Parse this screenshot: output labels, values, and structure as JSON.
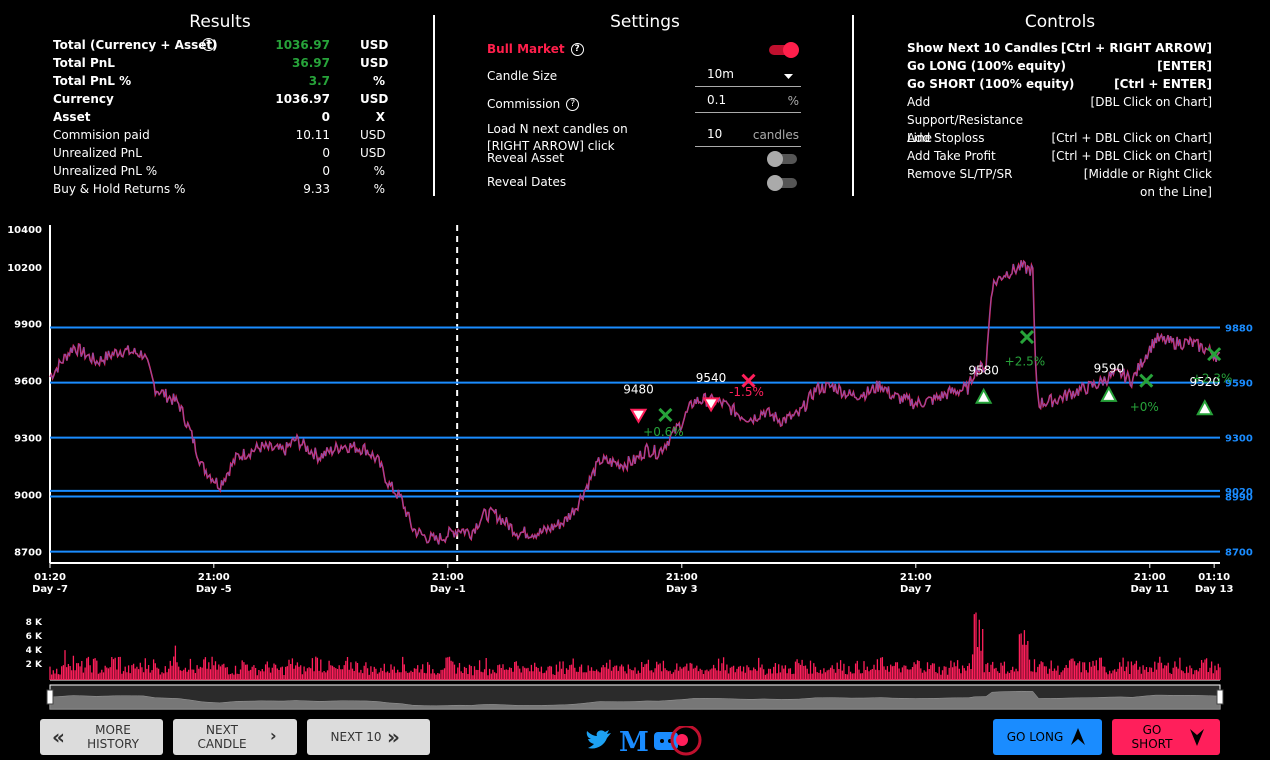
{
  "results": {
    "title": "Results",
    "rows": [
      {
        "label": "Total (Currency + Asset)",
        "value": "1036.97",
        "unit": "USD"
      },
      {
        "label": "Total PnL",
        "value": "36.97",
        "unit": "USD"
      },
      {
        "label": "Total PnL %",
        "value": "3.7",
        "unit": "%"
      },
      {
        "label": "Currency",
        "value": "1036.97",
        "unit": "USD"
      },
      {
        "label": "Asset",
        "value": "0",
        "unit": "X"
      },
      {
        "label": "Commision paid",
        "value": "10.11",
        "unit": "USD"
      },
      {
        "label": "Unrealized PnL",
        "value": "0",
        "unit": "USD"
      },
      {
        "label": "Unrealized PnL %",
        "value": "0",
        "unit": "%"
      },
      {
        "label": "Buy & Hold Returns %",
        "value": "9.33",
        "unit": "%"
      }
    ]
  },
  "settings": {
    "title": "Settings",
    "bull_market_label": "Bull Market",
    "bull_market_on": true,
    "candle_size_label": "Candle Size",
    "candle_size_value": "10m",
    "commission_label": "Commission",
    "commission_value": "0.1",
    "commission_suffix": "%",
    "load_n_label": "Load N next candles on [RIGHT ARROW] click",
    "load_n_value": "10",
    "load_n_suffix": "candles",
    "reveal_asset_label": "Reveal Asset",
    "reveal_asset_on": false,
    "reveal_dates_label": "Reveal Dates",
    "reveal_dates_on": false
  },
  "controls": {
    "title": "Controls",
    "rows": [
      {
        "action": "Show Next 10 Candles",
        "key": "[Ctrl + RIGHT ARROW]",
        "bold": true
      },
      {
        "action": "Go LONG (100% equity)",
        "key": "[ENTER]",
        "bold": true
      },
      {
        "action": "Go SHORT (100% equity)",
        "key": "[Ctrl + ENTER]",
        "bold": true
      },
      {
        "action": "Add Support/Resistance Line",
        "key": "[DBL Click on Chart]",
        "bold": false
      },
      {
        "action": "Add Stoploss",
        "key": "[Ctrl + DBL Click on Chart]",
        "bold": false
      },
      {
        "action": "Add Take Profit",
        "key": "[Ctrl + DBL Click on Chart]",
        "bold": false
      },
      {
        "action": "Remove SL/TP/SR",
        "key": "[Middle or Right Click on the Line]",
        "bold": false
      }
    ]
  },
  "chart_data": {
    "type": "candlestick",
    "price_axis_ticks": [
      10400,
      10200,
      9900,
      9600,
      9300,
      9000,
      8700
    ],
    "ylim": [
      8640,
      10420
    ],
    "time_axis_ticks": [
      {
        "time": "01:20",
        "day": "Day -7"
      },
      {
        "time": "21:00",
        "day": "Day -5"
      },
      {
        "time": "21:00",
        "day": "Day -1"
      },
      {
        "time": "21:00",
        "day": "Day 3"
      },
      {
        "time": "21:00",
        "day": "Day 7"
      },
      {
        "time": "21:00",
        "day": "Day 11"
      },
      {
        "time": "01:10",
        "day": "Day 13"
      }
    ],
    "sr_lines": [
      {
        "price": 9880,
        "label": "9880"
      },
      {
        "price": 9590,
        "label": "9590"
      },
      {
        "price": 9300,
        "label": "9300"
      },
      {
        "price": 9020,
        "label": "9020"
      },
      {
        "price": 8990,
        "label": "8990"
      },
      {
        "price": 8700,
        "label": "8700"
      }
    ],
    "trade_price_labels": [
      "9480",
      "9540",
      "9580",
      "9590",
      "9520"
    ],
    "trade_pnl_labels": [
      "+0.6%",
      "-1.5%",
      "+2.5%",
      "+0%",
      "+2.3%"
    ],
    "volume_axis_ticks": [
      "8 K",
      "6 K",
      "4 K",
      "2 K"
    ],
    "price_path": [
      [
        0,
        9620
      ],
      [
        0.02,
        9780
      ],
      [
        0.04,
        9700
      ],
      [
        0.06,
        9760
      ],
      [
        0.08,
        9740
      ],
      [
        0.09,
        9560
      ],
      [
        0.11,
        9480
      ],
      [
        0.12,
        9330
      ],
      [
        0.13,
        9150
      ],
      [
        0.145,
        9050
      ],
      [
        0.16,
        9200
      ],
      [
        0.18,
        9250
      ],
      [
        0.2,
        9230
      ],
      [
        0.21,
        9290
      ],
      [
        0.23,
        9200
      ],
      [
        0.25,
        9260
      ],
      [
        0.27,
        9240
      ],
      [
        0.28,
        9180
      ],
      [
        0.29,
        9050
      ],
      [
        0.3,
        8980
      ],
      [
        0.31,
        8820
      ],
      [
        0.32,
        8780
      ],
      [
        0.33,
        8760
      ],
      [
        0.35,
        8820
      ],
      [
        0.36,
        8800
      ],
      [
        0.37,
        8890
      ],
      [
        0.38,
        8900
      ],
      [
        0.39,
        8850
      ],
      [
        0.4,
        8800
      ],
      [
        0.42,
        8800
      ],
      [
        0.43,
        8830
      ],
      [
        0.44,
        8860
      ],
      [
        0.45,
        8940
      ],
      [
        0.46,
        9060
      ],
      [
        0.47,
        9180
      ],
      [
        0.49,
        9160
      ],
      [
        0.5,
        9180
      ],
      [
        0.51,
        9240
      ],
      [
        0.52,
        9220
      ],
      [
        0.53,
        9300
      ],
      [
        0.54,
        9380
      ],
      [
        0.55,
        9490
      ],
      [
        0.56,
        9500
      ],
      [
        0.575,
        9480
      ],
      [
        0.59,
        9420
      ],
      [
        0.6,
        9400
      ],
      [
        0.61,
        9440
      ],
      [
        0.625,
        9390
      ],
      [
        0.64,
        9420
      ],
      [
        0.655,
        9560
      ],
      [
        0.67,
        9570
      ],
      [
        0.685,
        9520
      ],
      [
        0.7,
        9540
      ],
      [
        0.71,
        9580
      ],
      [
        0.72,
        9520
      ],
      [
        0.74,
        9480
      ],
      [
        0.755,
        9500
      ],
      [
        0.77,
        9540
      ],
      [
        0.785,
        9560
      ],
      [
        0.79,
        9650
      ],
      [
        0.8,
        9680
      ],
      [
        0.805,
        10100
      ],
      [
        0.815,
        10160
      ],
      [
        0.83,
        10200
      ],
      [
        0.84,
        10180
      ],
      [
        0.842,
        9700
      ],
      [
        0.845,
        9480
      ],
      [
        0.86,
        9500
      ],
      [
        0.875,
        9540
      ],
      [
        0.885,
        9560
      ],
      [
        0.895,
        9580
      ],
      [
        0.905,
        9620
      ],
      [
        0.915,
        9640
      ],
      [
        0.925,
        9600
      ],
      [
        0.935,
        9720
      ],
      [
        0.945,
        9820
      ],
      [
        0.96,
        9800
      ],
      [
        0.975,
        9800
      ],
      [
        0.99,
        9760
      ],
      [
        1.0,
        9720
      ]
    ],
    "volume_path": [
      0.2,
      0.4,
      0.25,
      0.3,
      0.2,
      0.35,
      0.2,
      0.25,
      0.3,
      0.2,
      0.45,
      0.3,
      0.2,
      0.3,
      0.25,
      0.2,
      0.3,
      0.2,
      0.25,
      0.2,
      0.3,
      0.2,
      0.35,
      0.25,
      0.2,
      0.3,
      0.25,
      0.2,
      0.22,
      0.3,
      0.2,
      0.25,
      0.2,
      0.3,
      0.25,
      0.2,
      0.3,
      0.2,
      0.25,
      0.3,
      0.2,
      0.28,
      0.2,
      0.25,
      0.3,
      0.2,
      0.25,
      0.3,
      0.2,
      0.22,
      0.3,
      0.25,
      0.2,
      0.3,
      0.22,
      0.2,
      0.3,
      0.2,
      0.25,
      0.3,
      0.2,
      0.25,
      0.2,
      0.3,
      0.25,
      0.2,
      0.3,
      0.22,
      0.25,
      0.2,
      0.3,
      0.25,
      0.2,
      0.3,
      0.25,
      0.2,
      0.3,
      0.22,
      0.9,
      0.3,
      0.25,
      0.2,
      0.7,
      0.3,
      0.25,
      0.2,
      0.3,
      0.25,
      0.3,
      0.2,
      0.3,
      0.25,
      0.2,
      0.3,
      0.25,
      0.3,
      0.2,
      0.3,
      0.25,
      0.2
    ]
  },
  "buttons": {
    "more_history": "MORE HISTORY",
    "next_candle": "NEXT CANDLE",
    "next_10": "NEXT 10",
    "go_long": "GO LONG",
    "go_short": "GO SHORT"
  },
  "colors": {
    "accent_red": "#ff1f5b",
    "accent_blue": "#1a8cff",
    "profit_green": "#27a33a",
    "sr_line": "#1a8cff"
  },
  "icons": [
    "help-icon",
    "dropdown-caret-icon",
    "double-chevron-left-icon",
    "chevron-right-icon",
    "double-chevron-right-icon",
    "twitter-icon",
    "medium-icon",
    "discord-icon",
    "arrow-up-icon",
    "arrow-down-icon"
  ]
}
